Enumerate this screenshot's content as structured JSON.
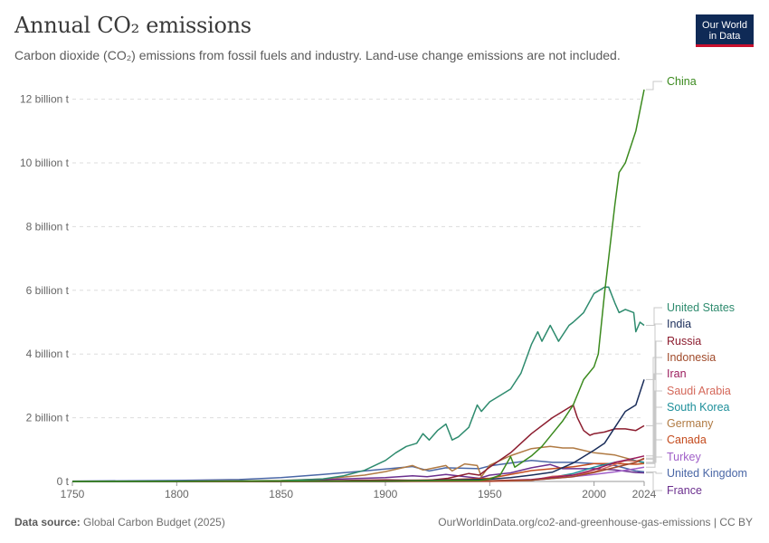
{
  "title": "Annual CO₂ emissions",
  "subtitle": "Carbon dioxide (CO₂) emissions from fossil fuels and industry. Land-use change emissions are not included.",
  "logo": {
    "line1": "Our World",
    "line2": "in Data"
  },
  "footer": {
    "source_label": "Data source:",
    "source_text": "Global Carbon Budget (2025)",
    "url_text": "OurWorldinData.org/co2-and-greenhouse-gas-emissions | CC BY"
  },
  "colors": {
    "accent": "#0f2a56",
    "brand_red": "#c8102e"
  },
  "chart_data": {
    "type": "line",
    "title": "Annual CO₂ emissions",
    "xlabel": "",
    "ylabel": "",
    "xlim": [
      1750,
      2024
    ],
    "ylim": [
      0,
      12.5
    ],
    "grid": true,
    "x_ticks": [
      "1750",
      "1800",
      "1850",
      "1900",
      "1950",
      "2000",
      "2024"
    ],
    "y_ticks": [
      {
        "value": 0,
        "label": "0 t"
      },
      {
        "value": 2,
        "label": "2 billion t"
      },
      {
        "value": 4,
        "label": "4 billion t"
      },
      {
        "value": 6,
        "label": "6 billion t"
      },
      {
        "value": 8,
        "label": "8 billion t"
      },
      {
        "value": 10,
        "label": "10 billion t"
      },
      {
        "value": 12,
        "label": "12 billion t"
      }
    ],
    "series": [
      {
        "name": "China",
        "color": "#3b8a1e",
        "x": [
          1750,
          1850,
          1900,
          1930,
          1945,
          1950,
          1955,
          1960,
          1962,
          1970,
          1975,
          1980,
          1985,
          1990,
          1995,
          2000,
          2002,
          2005,
          2010,
          2012,
          2015,
          2020,
          2024
        ],
        "values": [
          0,
          0.01,
          0.01,
          0.03,
          0.03,
          0.08,
          0.2,
          0.78,
          0.45,
          0.8,
          1.1,
          1.5,
          1.9,
          2.4,
          3.2,
          3.6,
          4.0,
          5.9,
          8.7,
          9.7,
          10.0,
          11.0,
          12.3
        ]
      },
      {
        "name": "United States",
        "color": "#2e8b6e",
        "x": [
          1750,
          1800,
          1850,
          1870,
          1880,
          1890,
          1900,
          1905,
          1910,
          1915,
          1918,
          1921,
          1925,
          1929,
          1932,
          1935,
          1940,
          1944,
          1946,
          1950,
          1955,
          1960,
          1965,
          1970,
          1973,
          1975,
          1979,
          1983,
          1988,
          1990,
          1995,
          2000,
          2005,
          2007,
          2010,
          2012,
          2015,
          2019,
          2020,
          2022,
          2024
        ],
        "values": [
          0,
          0.002,
          0.02,
          0.08,
          0.18,
          0.35,
          0.66,
          0.9,
          1.1,
          1.2,
          1.5,
          1.3,
          1.6,
          1.8,
          1.3,
          1.4,
          1.7,
          2.4,
          2.2,
          2.5,
          2.7,
          2.9,
          3.4,
          4.3,
          4.7,
          4.4,
          4.9,
          4.4,
          4.9,
          5.0,
          5.3,
          5.9,
          6.1,
          6.1,
          5.6,
          5.3,
          5.4,
          5.3,
          4.7,
          5.0,
          4.9
        ]
      },
      {
        "name": "India",
        "color": "#1a2d5a",
        "x": [
          1750,
          1900,
          1950,
          1960,
          1970,
          1980,
          1990,
          2000,
          2005,
          2010,
          2015,
          2020,
          2022,
          2024
        ],
        "values": [
          0,
          0.01,
          0.07,
          0.12,
          0.2,
          0.29,
          0.58,
          0.98,
          1.2,
          1.7,
          2.2,
          2.4,
          2.8,
          3.2
        ]
      },
      {
        "name": "Russia",
        "color": "#8c1d2f",
        "x": [
          1750,
          1850,
          1900,
          1920,
          1930,
          1940,
          1945,
          1950,
          1960,
          1970,
          1980,
          1985,
          1990,
          1992,
          1995,
          1998,
          2000,
          2005,
          2010,
          2015,
          2020,
          2024
        ],
        "values": [
          0,
          0.002,
          0.05,
          0.03,
          0.1,
          0.25,
          0.2,
          0.45,
          0.9,
          1.5,
          2.0,
          2.2,
          2.4,
          2.0,
          1.6,
          1.45,
          1.5,
          1.55,
          1.65,
          1.65,
          1.6,
          1.75
        ]
      },
      {
        "name": "Indonesia",
        "color": "#a04a2a",
        "x": [
          1750,
          1900,
          1950,
          1970,
          1990,
          2000,
          2010,
          2020,
          2024
        ],
        "values": [
          0,
          0.002,
          0.02,
          0.04,
          0.15,
          0.28,
          0.44,
          0.6,
          0.73
        ]
      },
      {
        "name": "Iran",
        "color": "#9b1c5c",
        "x": [
          1750,
          1900,
          1950,
          1970,
          1990,
          2000,
          2010,
          2020,
          2024
        ],
        "values": [
          0,
          0.001,
          0.02,
          0.06,
          0.2,
          0.37,
          0.6,
          0.74,
          0.8
        ]
      },
      {
        "name": "Saudi Arabia",
        "color": "#d4685a",
        "x": [
          1750,
          1950,
          1970,
          1980,
          1990,
          2000,
          2010,
          2015,
          2020,
          2024
        ],
        "values": [
          0,
          0.001,
          0.03,
          0.16,
          0.2,
          0.3,
          0.53,
          0.66,
          0.64,
          0.7
        ]
      },
      {
        "name": "South Korea",
        "color": "#1d8f9a",
        "x": [
          1750,
          1950,
          1970,
          1980,
          1990,
          2000,
          2010,
          2018,
          2024
        ],
        "values": [
          0,
          0.002,
          0.05,
          0.13,
          0.25,
          0.45,
          0.6,
          0.68,
          0.6
        ]
      },
      {
        "name": "Germany",
        "color": "#b07a43",
        "x": [
          1750,
          1800,
          1850,
          1870,
          1890,
          1900,
          1913,
          1918,
          1920,
          1929,
          1932,
          1938,
          1944,
          1946,
          1950,
          1960,
          1970,
          1979,
          1985,
          1990,
          2000,
          2010,
          2020,
          2024
        ],
        "values": [
          0,
          0.005,
          0.03,
          0.08,
          0.2,
          0.31,
          0.5,
          0.36,
          0.38,
          0.5,
          0.33,
          0.55,
          0.5,
          0.15,
          0.51,
          0.81,
          1.03,
          1.1,
          1.05,
          1.05,
          0.9,
          0.83,
          0.65,
          0.57
        ]
      },
      {
        "name": "Canada",
        "color": "#c44b1d",
        "x": [
          1750,
          1850,
          1900,
          1930,
          1950,
          1970,
          1990,
          2000,
          2010,
          2020,
          2024
        ],
        "values": [
          0,
          0.001,
          0.02,
          0.06,
          0.1,
          0.34,
          0.46,
          0.56,
          0.56,
          0.54,
          0.56
        ]
      },
      {
        "name": "Turkey",
        "color": "#a05fc8",
        "x": [
          1750,
          1950,
          1970,
          1990,
          2000,
          2010,
          2020,
          2024
        ],
        "values": [
          0,
          0.01,
          0.04,
          0.15,
          0.22,
          0.3,
          0.4,
          0.45
        ]
      },
      {
        "name": "United Kingdom",
        "color": "#4a67a6",
        "x": [
          1750,
          1800,
          1830,
          1850,
          1870,
          1890,
          1900,
          1913,
          1921,
          1929,
          1945,
          1950,
          1960,
          1970,
          1980,
          1990,
          2000,
          2010,
          2020,
          2024
        ],
        "values": [
          0.01,
          0.03,
          0.06,
          0.12,
          0.22,
          0.33,
          0.39,
          0.47,
          0.33,
          0.43,
          0.4,
          0.49,
          0.58,
          0.66,
          0.6,
          0.6,
          0.56,
          0.5,
          0.33,
          0.3
        ]
      },
      {
        "name": "France",
        "color": "#6b2f8e",
        "x": [
          1750,
          1850,
          1900,
          1913,
          1920,
          1929,
          1945,
          1950,
          1960,
          1970,
          1979,
          1985,
          1990,
          2000,
          2010,
          2020,
          2024
        ],
        "values": [
          0,
          0.02,
          0.12,
          0.18,
          0.15,
          0.22,
          0.1,
          0.2,
          0.27,
          0.43,
          0.53,
          0.4,
          0.4,
          0.4,
          0.36,
          0.28,
          0.27
        ]
      }
    ]
  }
}
